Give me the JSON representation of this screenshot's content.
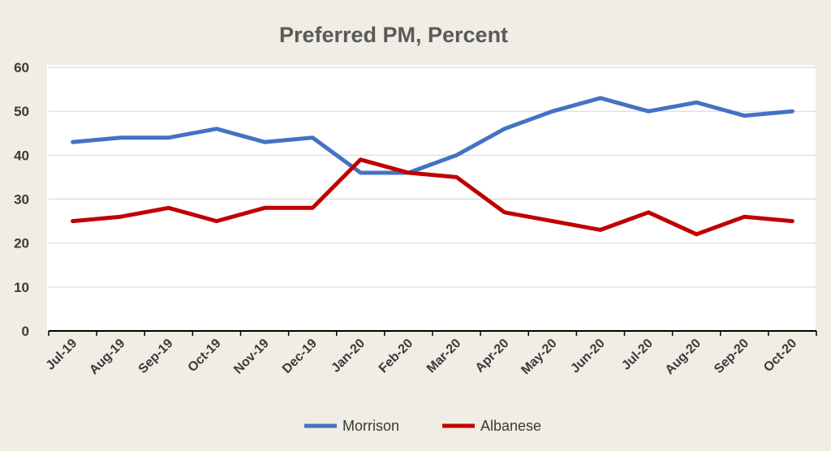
{
  "chart_data": {
    "type": "line",
    "title": "Preferred PM, Percent",
    "xlabel": "",
    "ylabel": "",
    "categories": [
      "Jul-19",
      "Aug-19",
      "Sep-19",
      "Oct-19",
      "Nov-19",
      "Dec-19",
      "Jan-20",
      "Feb-20",
      "Mar-20",
      "Apr-20",
      "May-20",
      "Jun-20",
      "Jul-20",
      "Aug-20",
      "Sep-20",
      "Oct-20"
    ],
    "ylim": [
      0,
      60
    ],
    "yticks": [
      "0",
      "10",
      "20",
      "30",
      "40",
      "50",
      "60"
    ],
    "grid": true,
    "legend_position": "bottom",
    "series": [
      {
        "name": "Morrison",
        "color": "#4472c4",
        "values": [
          43,
          44,
          44,
          46,
          43,
          44,
          36,
          36,
          40,
          46,
          50,
          53,
          50,
          52,
          49,
          50
        ]
      },
      {
        "name": "Albanese",
        "color": "#c00000",
        "values": [
          25,
          26,
          28,
          25,
          28,
          28,
          39,
          36,
          35,
          27,
          25,
          23,
          27,
          22,
          26,
          25
        ]
      }
    ]
  }
}
